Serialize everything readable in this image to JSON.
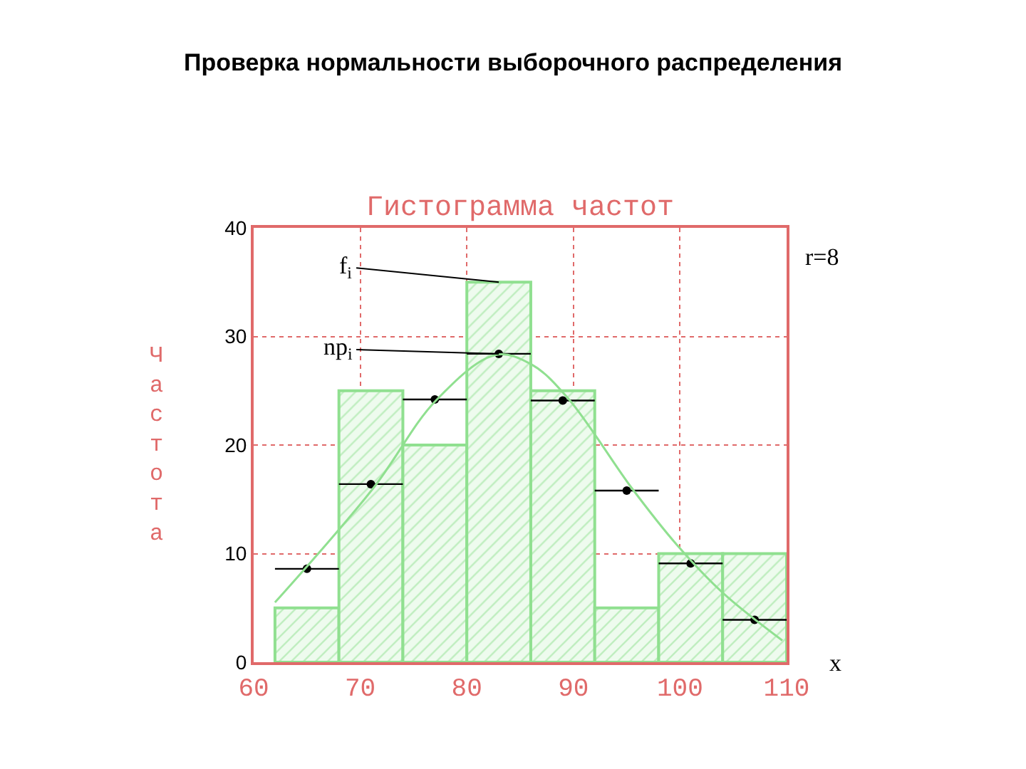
{
  "chart_data": {
    "type": "histogram",
    "title": "Проверка нормальности выборочного распределения",
    "subtitle": "Гистограмма частот",
    "ylabel": "Частота",
    "xlabel": "x",
    "bins": [
      62,
      68,
      74,
      80,
      86,
      92,
      98,
      104,
      110
    ],
    "values": [
      5,
      25,
      20,
      35,
      25,
      5,
      10,
      10
    ],
    "color": "#90e090",
    "series": [
      {
        "type": "scatter",
        "x": [
          65,
          71,
          77,
          83,
          89,
          95,
          101,
          107
        ],
        "values": [
          8.6,
          16.4,
          24.2,
          28.4,
          24.1,
          15.8,
          9.1,
          3.9
        ],
        "xerrors": [
          3,
          3,
          3,
          3,
          3,
          3,
          3,
          3
        ],
        "color": "#000000",
        "marker": "circle"
      },
      {
        "type": "line",
        "x": [
          62,
          71.2,
          77.1,
          82.7,
          86.1,
          89.5,
          95.5,
          99.8,
          104,
          109.6
        ],
        "values": [
          5.5,
          16,
          24.1,
          28.3,
          27.4,
          24.3,
          16,
          10.7,
          6.4,
          2
        ],
        "color": "#90e090"
      }
    ],
    "xlim": [
      60,
      110
    ],
    "xticks": [
      60,
      70,
      80,
      90,
      100,
      110
    ],
    "ylim": [
      0,
      40
    ],
    "yticks": [
      0,
      10,
      20,
      30,
      40
    ],
    "grid": true,
    "annotations": [
      {
        "text": "f$_{i}$",
        "x": 83,
        "y": 35
      },
      {
        "text": "np$_{i}$",
        "x": 83,
        "y": 28.4
      },
      "r=8"
    ]
  }
}
